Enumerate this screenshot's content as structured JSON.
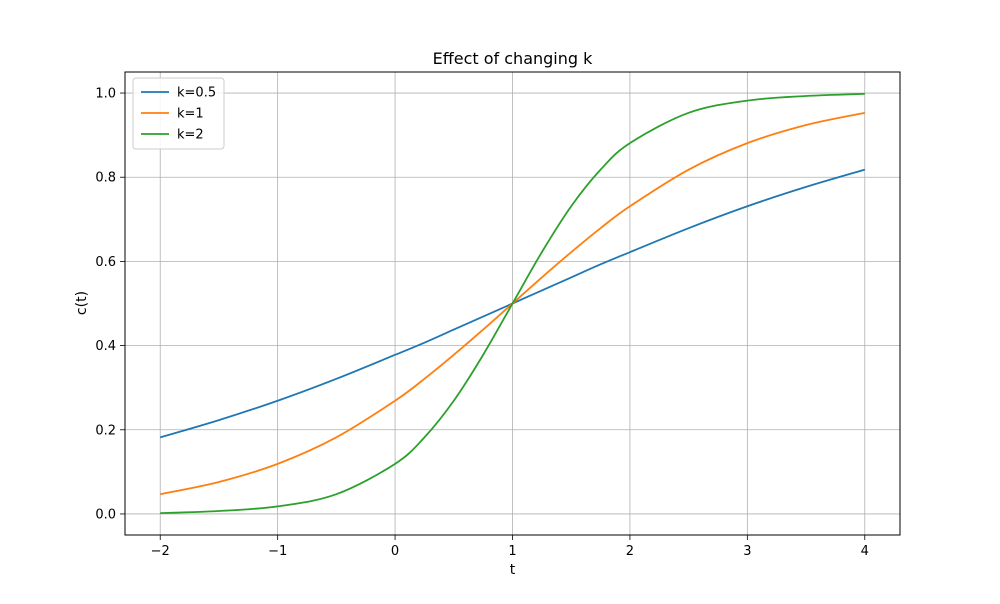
{
  "chart_data": {
    "type": "line",
    "title": "Effect of changing k",
    "xlabel": "t",
    "ylabel": "c(t)",
    "xlim": [
      -2.3,
      4.3
    ],
    "ylim": [
      -0.05,
      1.05
    ],
    "xticks": [
      -2,
      -1,
      0,
      1,
      2,
      3,
      4
    ],
    "xtick_labels": [
      "−2",
      "−1",
      "0",
      "1",
      "2",
      "3",
      "4"
    ],
    "yticks": [
      0.0,
      0.2,
      0.4,
      0.6,
      0.8,
      1.0
    ],
    "ytick_labels": [
      "0.0",
      "0.2",
      "0.4",
      "0.6",
      "0.8",
      "1.0"
    ],
    "grid": true,
    "legend_position": "upper-left",
    "x": [
      -2,
      -1.5,
      -1,
      -0.5,
      0,
      0.25,
      0.5,
      0.75,
      1,
      1.25,
      1.5,
      1.75,
      2,
      2.5,
      3,
      3.5,
      4
    ],
    "series": [
      {
        "name": "k=0.5",
        "color": "#1f77b4",
        "values": [
          0.182,
          0.223,
          0.269,
          0.321,
          0.378,
          0.407,
          0.438,
          0.469,
          0.5,
          0.531,
          0.562,
          0.593,
          0.622,
          0.679,
          0.731,
          0.777,
          0.818
        ]
      },
      {
        "name": "k=1",
        "color": "#ff7f0e",
        "values": [
          0.047,
          0.076,
          0.119,
          0.182,
          0.269,
          0.321,
          0.378,
          0.438,
          0.5,
          0.562,
          0.622,
          0.679,
          0.731,
          0.818,
          0.881,
          0.924,
          0.953
        ]
      },
      {
        "name": "k=2",
        "color": "#2ca02c",
        "values": [
          0.002,
          0.007,
          0.018,
          0.047,
          0.119,
          0.182,
          0.269,
          0.378,
          0.5,
          0.622,
          0.731,
          0.818,
          0.881,
          0.953,
          0.982,
          0.993,
          0.998
        ]
      }
    ]
  }
}
